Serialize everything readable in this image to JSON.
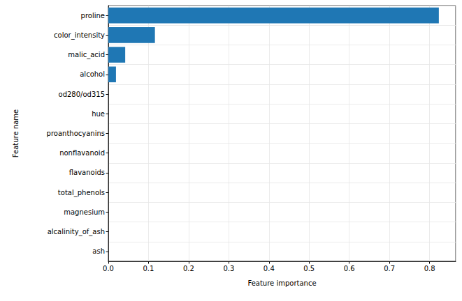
{
  "chart_data": {
    "type": "bar",
    "orientation": "horizontal",
    "x_label": "Feature importance",
    "y_label": "Feature name",
    "categories": [
      "proline",
      "color_intensity",
      "malic_acid",
      "alcohol",
      "od280/od315",
      "hue",
      "proanthocyanins",
      "nonflavanoid",
      "flavanoids",
      "total_phenols",
      "magnesium",
      "alcalinity_of_ash",
      "ash"
    ],
    "values": [
      0.823,
      0.116,
      0.042,
      0.019,
      0,
      0,
      0,
      0,
      0,
      0,
      0,
      0,
      0
    ],
    "color": "#1f77b4",
    "xlim": [
      0,
      0.865
    ],
    "xticks": [
      {
        "value": 0,
        "label": "0.0"
      },
      {
        "value": 0.1,
        "label": "0.1"
      },
      {
        "value": 0.2,
        "label": "0.2"
      },
      {
        "value": 0.3,
        "label": "0.3"
      },
      {
        "value": 0.4,
        "label": "0.4"
      },
      {
        "value": 0.5,
        "label": "0.5"
      },
      {
        "value": 0.6,
        "label": "0.6"
      },
      {
        "value": 0.7,
        "label": "0.7"
      },
      {
        "value": 0.8,
        "label": "0.8"
      }
    ],
    "grid": true
  }
}
